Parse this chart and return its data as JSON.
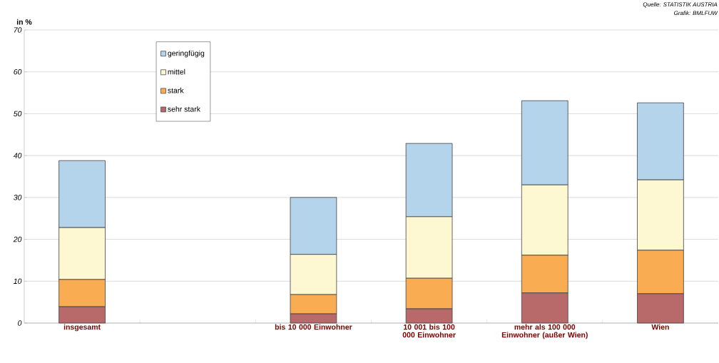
{
  "chart_data": {
    "type": "bar",
    "stacked": true,
    "ylabel": "in %",
    "categories": [
      "insgesamt",
      null,
      "bis 10 000 Einwohner",
      "10 001 bis 100 000 Einwohner",
      "mehr als 100 000 Einwohner (außer Wien)",
      "Wien"
    ],
    "series": [
      {
        "name": "sehr stark",
        "color": "#b8696a",
        "values": [
          3.9,
          null,
          2.2,
          3.4,
          7.2,
          7.0
        ]
      },
      {
        "name": "stark",
        "color": "#f9ac52",
        "values": [
          6.5,
          null,
          4.6,
          7.3,
          9.0,
          10.4
        ]
      },
      {
        "name": "mittel",
        "color": "#fdf8d2",
        "values": [
          12.4,
          null,
          9.6,
          14.7,
          16.8,
          16.8
        ]
      },
      {
        "name": "geringfügig",
        "color": "#b4d4ec",
        "values": [
          16.0,
          null,
          13.6,
          17.5,
          20.1,
          18.4
        ]
      }
    ],
    "ylim": [
      0,
      70
    ],
    "yticks": [
      0,
      10,
      20,
      30,
      40,
      50,
      60,
      70
    ],
    "grid": "y",
    "legend": "top left",
    "annotations": [
      "Quelle: STATISTIK AUSTRIA",
      "Grafik: BMLFUW"
    ]
  }
}
